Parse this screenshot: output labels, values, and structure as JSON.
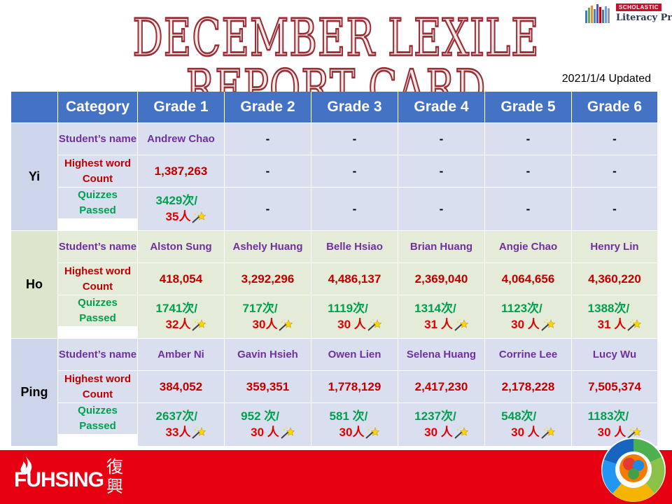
{
  "title": "DECEMBER LEXILE REPORT CARD",
  "logo": {
    "brand": "SCHOLASTIC",
    "product": "Literacy Pro"
  },
  "updated": "2021/1/4 Updated",
  "table": {
    "headers": [
      "Category",
      "Grade 1",
      "Grade 2",
      "Grade 3",
      "Grade 4",
      "Grade 5",
      "Grade 6"
    ],
    "row_labels": {
      "name": "Student’s name",
      "count": "Highest word Count",
      "quiz": "Quizzes Passed"
    },
    "schools": [
      {
        "school": "Yi",
        "names": [
          "Andrew Chao",
          "-",
          "-",
          "-",
          "-",
          "-"
        ],
        "counts": [
          "1,387,263",
          "-",
          "-",
          "-",
          "-",
          "-"
        ],
        "quizzes": [
          {
            "times": "3429次/",
            "people": "35人"
          },
          "-",
          "-",
          "-",
          "-",
          "-"
        ]
      },
      {
        "school": "Ho",
        "names": [
          "Alston Sung",
          "Ashely Huang",
          "Belle Hsiao",
          "Brian Huang",
          "Angie Chao",
          "Henry Lin"
        ],
        "counts": [
          "418,054",
          "3,292,296",
          "4,486,137",
          "2,369,040",
          "4,064,656",
          "4,360,220"
        ],
        "quizzes": [
          {
            "times": "1741次/",
            "people": "32人"
          },
          {
            "times": "717次/",
            "people": "30人"
          },
          {
            "times": "1119次/",
            "people": "30 人"
          },
          {
            "times": "1314次/",
            "people": "31 人"
          },
          {
            "times": "1123次/",
            "people": "30 人"
          },
          {
            "times": "1388次/",
            "people": "31 人"
          }
        ]
      },
      {
        "school": "Ping",
        "names": [
          "Amber Ni",
          "Gavin Hsieh",
          "Owen Lien",
          "Selena Huang",
          "Corrine Lee",
          "Lucy Wu"
        ],
        "counts": [
          "384,052",
          "359,351",
          "1,778,129",
          "2,417,230",
          "2,178,228",
          "7,505,374"
        ],
        "quizzes": [
          {
            "times": "2637次/",
            "people": "33人"
          },
          {
            "times": "952 次/",
            "people": "30 人"
          },
          {
            "times": "581 次/",
            "people": "30人"
          },
          {
            "times": "1237次/",
            "people": "30 人"
          },
          {
            "times": "548次/",
            "people": "30 人"
          },
          {
            "times": "1183次/",
            "people": "30 人"
          }
        ]
      }
    ]
  },
  "footer": {
    "brand": "FUHSING",
    "brand_cn": "復興"
  },
  "colors": {
    "header": "#4472c4",
    "footer": "#e60012",
    "title_outline": "#9a2d35"
  }
}
